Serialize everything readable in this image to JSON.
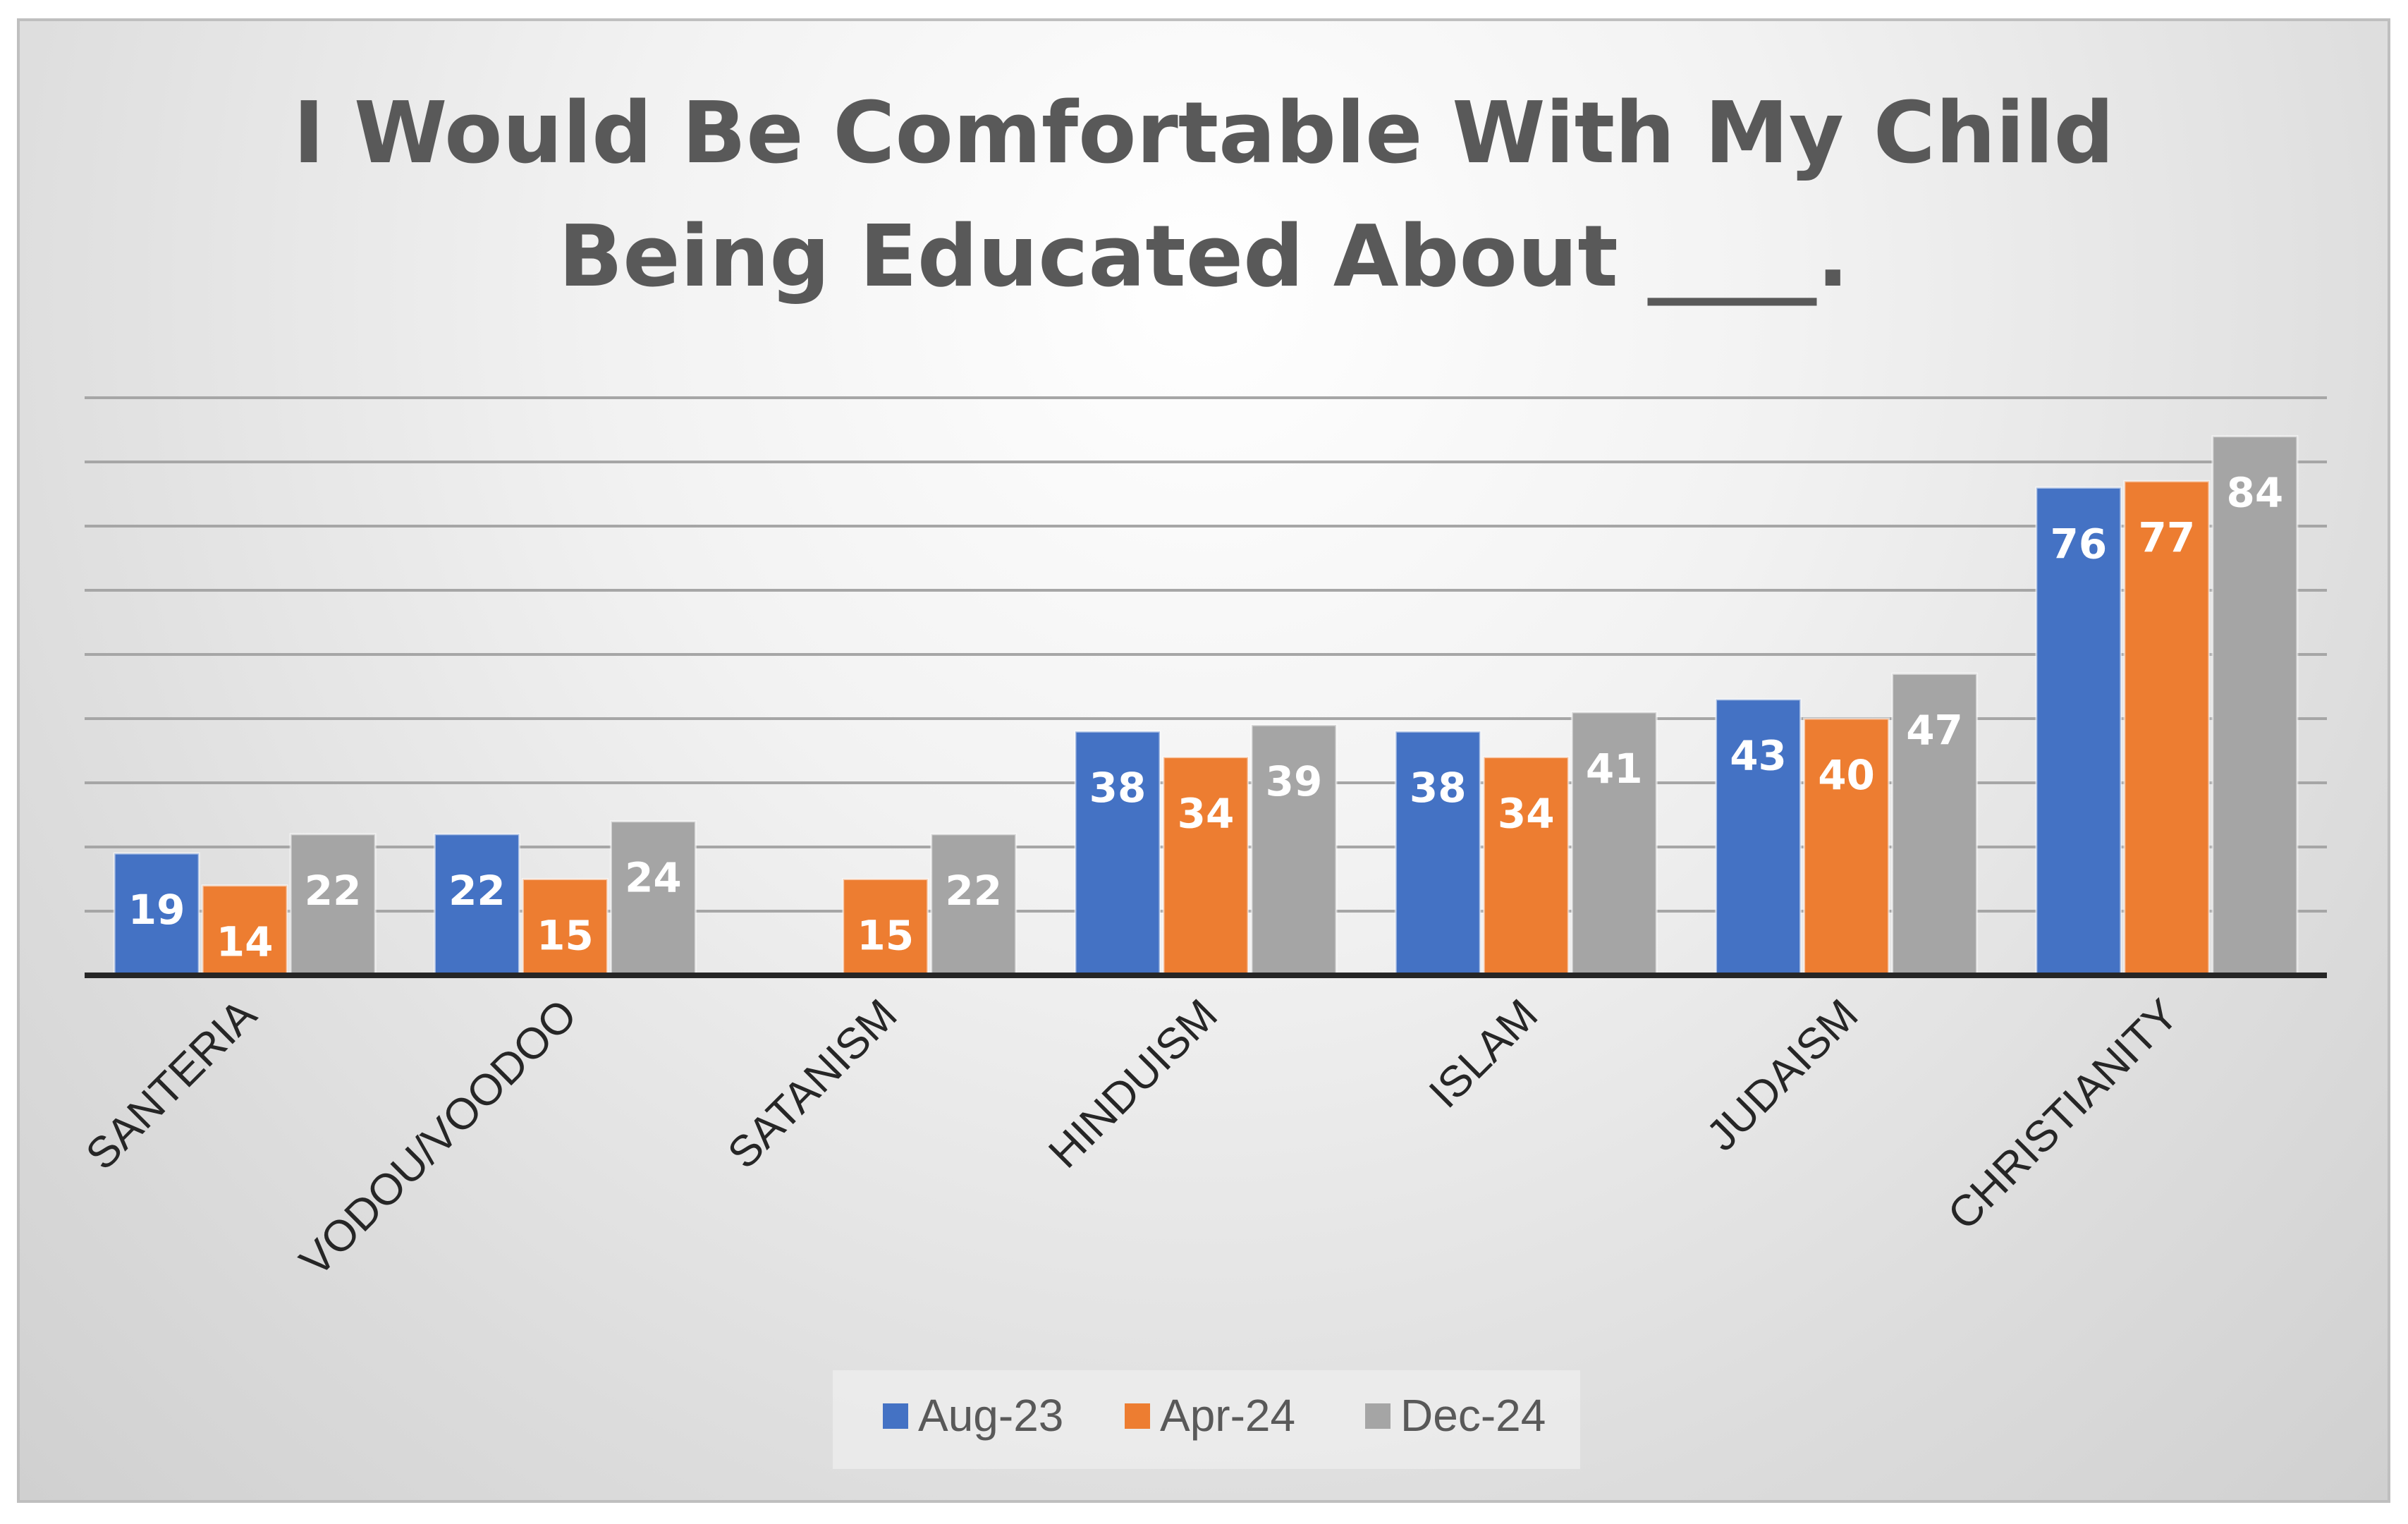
{
  "chart_data": {
    "type": "bar",
    "title_lines": [
      "I Would Be Comfortable With My Child",
      "Being Educated About ____."
    ],
    "categories": [
      "SANTERIA",
      "VODOU/VOODOO",
      "SATANISM",
      "HINDUISM",
      "ISLAM",
      "JUDAISM",
      "CHRISTIANITY"
    ],
    "series": [
      {
        "name": "Aug-23",
        "color": "#4472c4",
        "values": [
          19,
          22,
          null,
          38,
          38,
          43,
          76
        ]
      },
      {
        "name": "Apr-24",
        "color": "#ed7d31",
        "values": [
          14,
          15,
          15,
          34,
          34,
          40,
          77
        ]
      },
      {
        "name": "Dec-24",
        "color": "#a5a5a5",
        "values": [
          22,
          24,
          22,
          39,
          41,
          47,
          84
        ]
      }
    ],
    "ylim": [
      0,
      90
    ],
    "gridline_step": 10,
    "grid": true,
    "legend_position": "bottom",
    "xlabel": "",
    "ylabel": ""
  }
}
